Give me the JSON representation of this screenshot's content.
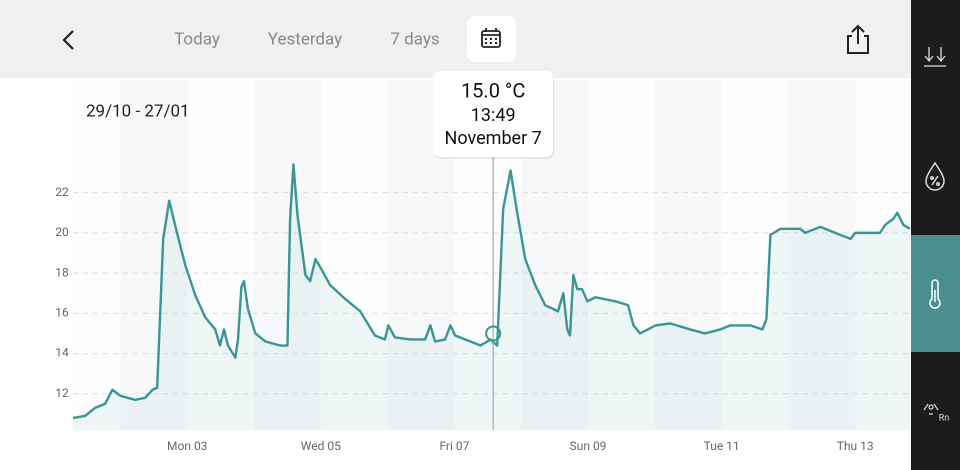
{
  "header": {
    "tabs": [
      "Today",
      "Yesterday",
      "7 days"
    ]
  },
  "range_label": "29/10 - 27/01",
  "sidebar": {
    "radon_label": "Rn"
  },
  "chart_data": {
    "type": "line",
    "x": [
      1.29,
      1.47,
      1.62,
      1.77,
      1.88,
      2.0,
      2.22,
      2.37,
      2.48,
      2.55,
      2.64,
      2.73,
      2.84,
      2.97,
      3.12,
      3.27,
      3.42,
      3.49,
      3.55,
      3.61,
      3.72,
      3.76,
      3.81,
      3.85,
      3.91,
      4.02,
      4.17,
      4.39,
      4.5,
      4.54,
      4.59,
      4.65,
      4.77,
      4.84,
      4.92,
      4.99,
      5.14,
      5.37,
      5.59,
      5.81,
      5.96,
      6.01,
      6.11,
      6.34,
      6.56,
      6.64,
      6.71,
      6.86,
      6.94,
      7.01,
      7.24,
      7.39,
      7.54,
      7.64,
      7.73,
      7.84,
      7.93,
      8.06,
      8.21,
      8.36,
      8.55,
      8.63,
      8.69,
      8.73,
      8.78,
      8.84,
      8.91,
      8.99,
      9.11,
      9.41,
      9.6,
      9.68,
      9.78,
      10.01,
      10.23,
      10.53,
      10.75,
      10.98,
      11.13,
      11.43,
      11.61,
      11.67,
      11.73,
      11.88,
      12.18,
      12.25,
      12.48,
      12.7,
      12.93,
      13.0,
      13.37,
      13.45,
      13.57,
      13.63,
      13.72,
      13.82
    ],
    "series": [
      {
        "color": "#3a9595",
        "values": [
          10.8,
          10.9,
          11.3,
          11.5,
          12.2,
          11.9,
          11.7,
          11.8,
          12.2,
          12.3,
          19.7,
          21.6,
          20.1,
          18.4,
          16.9,
          15.8,
          15.2,
          14.4,
          15.2,
          14.4,
          13.8,
          14.7,
          17.3,
          17.6,
          16.2,
          15.0,
          14.6,
          14.4,
          14.4,
          20.7,
          23.4,
          20.9,
          17.9,
          17.6,
          18.7,
          18.3,
          17.4,
          16.7,
          16.1,
          14.9,
          14.7,
          15.4,
          14.8,
          14.7,
          14.7,
          15.4,
          14.6,
          14.7,
          15.4,
          14.9,
          14.6,
          14.4,
          14.7,
          14.4,
          21.2,
          23.1,
          21.2,
          18.7,
          17.4,
          16.4,
          16.1,
          17.0,
          15.2,
          14.9,
          17.9,
          17.2,
          17.2,
          16.6,
          16.8,
          16.6,
          16.4,
          15.4,
          15.0,
          15.4,
          15.5,
          15.2,
          15.0,
          15.2,
          15.4,
          15.4,
          15.2,
          15.7,
          19.9,
          20.2,
          20.2,
          20.0,
          20.3,
          20.0,
          19.7,
          20.0,
          20.0,
          20.4,
          20.7,
          21.0,
          20.4,
          20.2
        ]
      }
    ],
    "xlim": [
      1.29,
      13.82
    ],
    "xticks": [
      {
        "value": 3,
        "label": "Mon 03"
      },
      {
        "value": 5,
        "label": "Wed 05"
      },
      {
        "value": 7,
        "label": "Fri 07"
      },
      {
        "value": 9,
        "label": "Sun 09"
      },
      {
        "value": 11,
        "label": "Tue 11"
      },
      {
        "value": 13,
        "label": "Thu 13"
      }
    ],
    "ylim": [
      10.2,
      27.6
    ],
    "yticks": [
      12,
      14,
      16,
      18,
      20,
      22
    ],
    "grid": true,
    "cursor": {
      "x": 7.58,
      "y": 15.0,
      "label": "15.0 °C",
      "time": "13:49",
      "date": "November 7"
    }
  }
}
